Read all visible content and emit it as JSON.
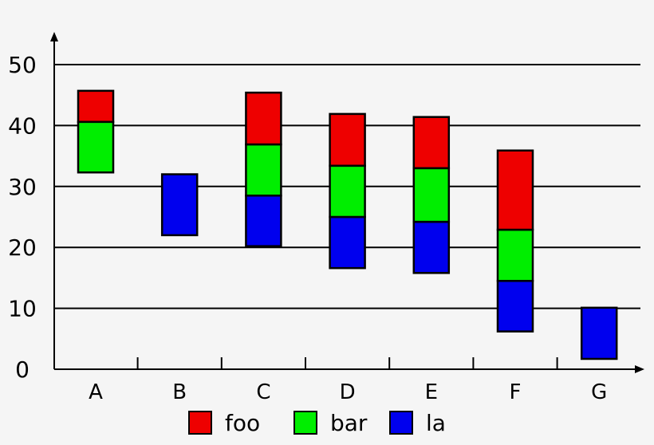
{
  "chart_data": {
    "type": "bar",
    "subtype": "floating-stacked",
    "title": "",
    "xlabel": "",
    "ylabel": "",
    "ylim": [
      0,
      50
    ],
    "yticks": [
      0,
      10,
      20,
      30,
      40,
      50
    ],
    "grid": true,
    "legend_placement": "bottom",
    "categories": [
      "A",
      "B",
      "C",
      "D",
      "E",
      "F",
      "G"
    ],
    "series": [
      {
        "name": "la",
        "color": "#0000ee",
        "ranges": [
          null,
          [
            22,
            32
          ],
          [
            20.2,
            28.5
          ],
          [
            16.6,
            25
          ],
          [
            15.8,
            24.2
          ],
          [
            6.2,
            14.5
          ],
          [
            1.7,
            10.1
          ]
        ]
      },
      {
        "name": "bar",
        "color": "#00ee00",
        "ranges": [
          [
            32.3,
            40.6
          ],
          null,
          [
            28.5,
            36.9
          ],
          [
            25,
            33.4
          ],
          [
            24.2,
            33
          ],
          [
            14.5,
            22.9
          ],
          null
        ]
      },
      {
        "name": "foo",
        "color": "#ee0000",
        "ranges": [
          [
            40.6,
            45.7
          ],
          null,
          [
            36.9,
            45.4
          ],
          [
            33.4,
            41.9
          ],
          [
            33,
            41.4
          ],
          [
            22.9,
            35.9
          ],
          null
        ]
      }
    ],
    "legend_order": [
      "foo",
      "bar",
      "la"
    ]
  }
}
